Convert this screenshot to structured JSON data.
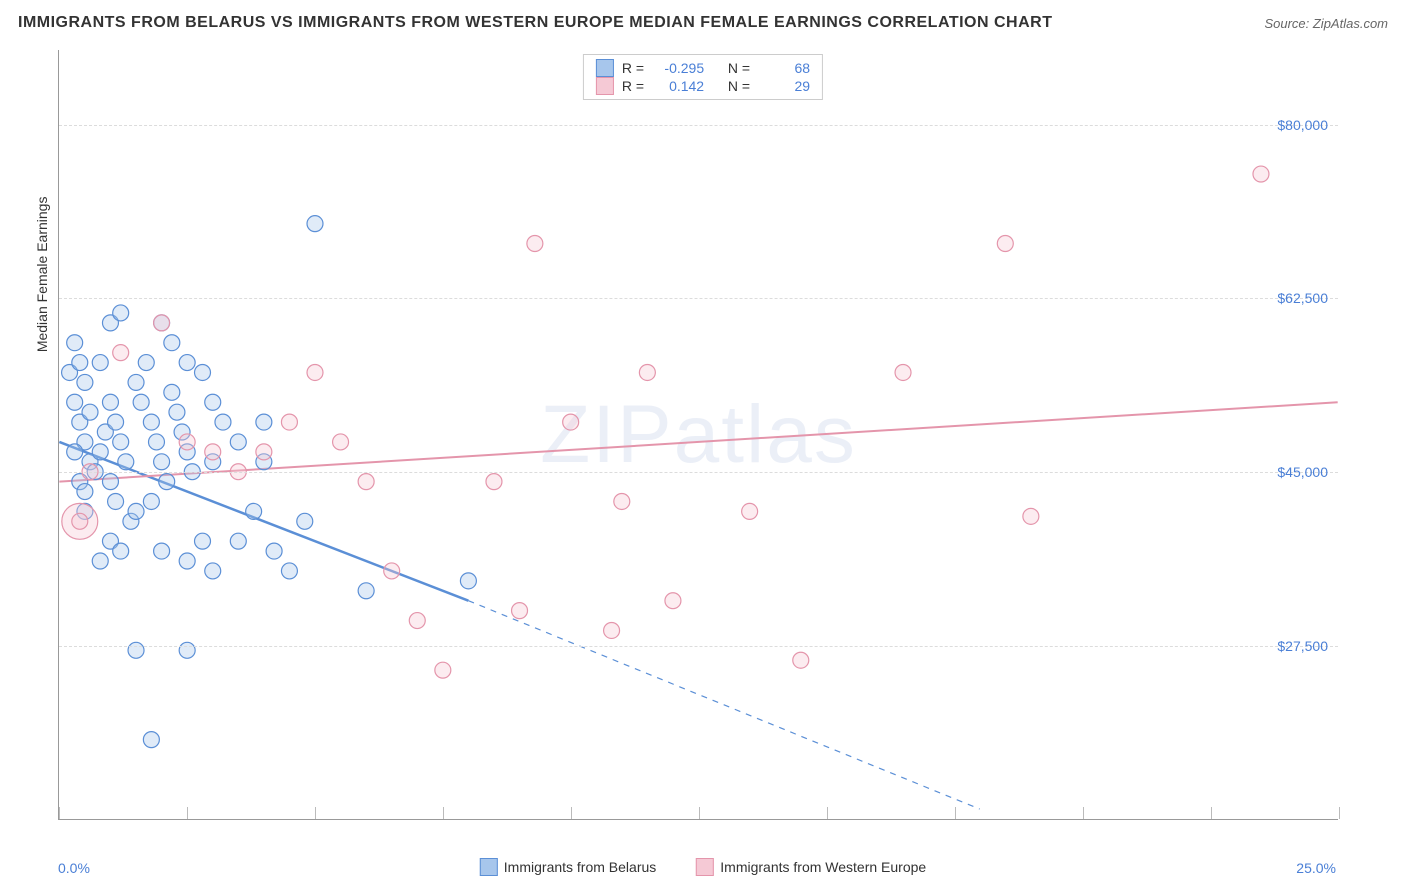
{
  "title": "IMMIGRANTS FROM BELARUS VS IMMIGRANTS FROM WESTERN EUROPE MEDIAN FEMALE EARNINGS CORRELATION CHART",
  "source": "Source: ZipAtlas.com",
  "watermark": "ZIPatlas",
  "chart": {
    "type": "scatter",
    "background_color": "#ffffff",
    "grid_color": "#dcdcdc",
    "axis_color": "#999999",
    "tick_label_color": "#4a7fd6",
    "text_color": "#333333",
    "xlim": [
      0,
      25
    ],
    "ylim": [
      10000,
      87500
    ],
    "x_left_label": "0.0%",
    "x_right_label": "25.0%",
    "x_ticks": [
      0,
      2.5,
      5,
      7.5,
      10,
      12.5,
      15,
      17.5,
      20,
      22.5,
      25
    ],
    "y_gridlines": [
      27500,
      45000,
      62500,
      80000
    ],
    "y_tick_labels": [
      "$27,500",
      "$45,000",
      "$62,500",
      "$80,000"
    ],
    "ylabel": "Median Female Earnings",
    "marker_radius": 8,
    "marker_stroke_width": 1.2,
    "marker_fill_opacity": 0.35,
    "series": [
      {
        "name": "Immigrants from Belarus",
        "color_stroke": "#5b8fd6",
        "color_fill": "#a7c6ec",
        "R": "-0.295",
        "N": "68",
        "trend": {
          "x1": 0,
          "y1": 48000,
          "x2": 8.0,
          "y2": 32000,
          "solid_until_x": 8.0,
          "dash_to_x": 18.0,
          "dash_to_y": 11000,
          "width": 2.5
        },
        "points": [
          [
            0.2,
            55000
          ],
          [
            0.3,
            58000
          ],
          [
            0.4,
            56000
          ],
          [
            0.5,
            54000
          ],
          [
            0.3,
            52000
          ],
          [
            0.4,
            50000
          ],
          [
            0.5,
            48000
          ],
          [
            0.6,
            46000
          ],
          [
            0.4,
            44000
          ],
          [
            0.5,
            43000
          ],
          [
            0.7,
            45000
          ],
          [
            0.8,
            47000
          ],
          [
            0.6,
            51000
          ],
          [
            0.9,
            49000
          ],
          [
            1.0,
            52000
          ],
          [
            1.1,
            50000
          ],
          [
            1.2,
            48000
          ],
          [
            1.3,
            46000
          ],
          [
            1.0,
            44000
          ],
          [
            1.1,
            42000
          ],
          [
            1.4,
            40000
          ],
          [
            1.5,
            54000
          ],
          [
            1.6,
            52000
          ],
          [
            1.7,
            56000
          ],
          [
            1.8,
            50000
          ],
          [
            1.9,
            48000
          ],
          [
            2.0,
            46000
          ],
          [
            2.1,
            44000
          ],
          [
            1.5,
            41000
          ],
          [
            1.8,
            42000
          ],
          [
            2.2,
            53000
          ],
          [
            2.3,
            51000
          ],
          [
            2.4,
            49000
          ],
          [
            2.5,
            47000
          ],
          [
            2.6,
            45000
          ],
          [
            2.0,
            60000
          ],
          [
            2.2,
            58000
          ],
          [
            2.5,
            56000
          ],
          [
            2.8,
            55000
          ],
          [
            3.0,
            52000
          ],
          [
            3.2,
            50000
          ],
          [
            0.8,
            36000
          ],
          [
            1.0,
            38000
          ],
          [
            1.2,
            37000
          ],
          [
            2.0,
            37000
          ],
          [
            2.5,
            36000
          ],
          [
            3.0,
            35000
          ],
          [
            3.5,
            38000
          ],
          [
            3.0,
            46000
          ],
          [
            3.5,
            48000
          ],
          [
            4.0,
            50000
          ],
          [
            4.0,
            46000
          ],
          [
            4.2,
            37000
          ],
          [
            4.5,
            35000
          ],
          [
            1.0,
            60000
          ],
          [
            1.2,
            61000
          ],
          [
            0.8,
            56000
          ],
          [
            2.8,
            38000
          ],
          [
            1.5,
            27000
          ],
          [
            2.5,
            27000
          ],
          [
            1.8,
            18000
          ],
          [
            5.0,
            70000
          ],
          [
            8.0,
            34000
          ],
          [
            6.0,
            33000
          ],
          [
            3.8,
            41000
          ],
          [
            4.8,
            40000
          ],
          [
            0.3,
            47000
          ],
          [
            0.5,
            41000
          ]
        ]
      },
      {
        "name": "Immigrants from Western Europe",
        "color_stroke": "#e495ab",
        "color_fill": "#f5c9d5",
        "R": "0.142",
        "N": "29",
        "trend": {
          "x1": 0,
          "y1": 44000,
          "x2": 25,
          "y2": 52000,
          "width": 2
        },
        "points": [
          [
            0.4,
            40000
          ],
          [
            1.2,
            57000
          ],
          [
            2.0,
            60000
          ],
          [
            2.5,
            48000
          ],
          [
            3.0,
            47000
          ],
          [
            3.5,
            45000
          ],
          [
            4.0,
            47000
          ],
          [
            5.0,
            55000
          ],
          [
            5.5,
            48000
          ],
          [
            6.0,
            44000
          ],
          [
            7.0,
            30000
          ],
          [
            7.5,
            25000
          ],
          [
            8.5,
            44000
          ],
          [
            9.0,
            31000
          ],
          [
            9.3,
            68000
          ],
          [
            10.0,
            50000
          ],
          [
            10.8,
            29000
          ],
          [
            11.0,
            42000
          ],
          [
            11.5,
            55000
          ],
          [
            12.0,
            32000
          ],
          [
            13.5,
            41000
          ],
          [
            14.5,
            26000
          ],
          [
            16.5,
            55000
          ],
          [
            18.5,
            68000
          ],
          [
            19.0,
            40500
          ],
          [
            23.5,
            75000
          ],
          [
            6.5,
            35000
          ],
          [
            4.5,
            50000
          ],
          [
            0.6,
            45000
          ]
        ],
        "big_point": {
          "x": 0.4,
          "y": 40000,
          "r": 18
        }
      }
    ],
    "legend_top": {
      "R_label": "R =",
      "N_label": "N ="
    },
    "legend_bottom": {
      "items": [
        "Immigrants from Belarus",
        "Immigrants from Western Europe"
      ]
    }
  }
}
